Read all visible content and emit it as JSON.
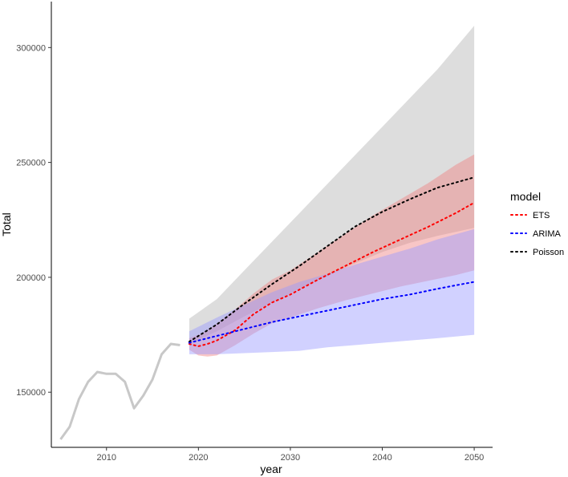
{
  "chart_data": {
    "type": "line",
    "xlabel": "year",
    "ylabel": "Total",
    "xlim": [
      2004,
      2052
    ],
    "ylim": [
      126000,
      320000
    ],
    "x_ticks": [
      2010,
      2020,
      2030,
      2040,
      2050
    ],
    "y_ticks": [
      150000,
      200000,
      250000,
      300000
    ],
    "y_tick_labels": [
      "150000",
      "200000",
      "250000",
      "300000"
    ],
    "grid": false,
    "legend": {
      "title": "model",
      "position": "right",
      "entries": [
        {
          "label": "ETS",
          "color": "#ff0000"
        },
        {
          "label": "ARIMA",
          "color": "#0000ff"
        },
        {
          "label": "Poisson",
          "color": "#000000"
        }
      ]
    },
    "observed": {
      "color": "#c8c8c8",
      "x": [
        2005,
        2006,
        2007,
        2008,
        2009,
        2010,
        2011,
        2012,
        2013,
        2014,
        2015,
        2016,
        2017,
        2018
      ],
      "y": [
        129500,
        135000,
        147000,
        154500,
        158800,
        158000,
        158000,
        154500,
        143000,
        148500,
        155500,
        166500,
        171000,
        170500
      ]
    },
    "series": [
      {
        "name": "Poisson",
        "color": "#000000",
        "band_color": "#b3b3b3",
        "x": [
          2019,
          2022,
          2025,
          2028,
          2031,
          2034,
          2037,
          2040,
          2043,
          2046,
          2050
        ],
        "mean": [
          172000,
          179500,
          188500,
          197000,
          205000,
          213500,
          222000,
          228500,
          234000,
          239000,
          243500
        ],
        "lower": [
          171000,
          176500,
          183000,
          189000,
          195000,
          200500,
          206000,
          211000,
          215000,
          218000,
          221500
        ],
        "upper": [
          182000,
          190500,
          203000,
          215500,
          228000,
          240500,
          253000,
          265500,
          278000,
          290500,
          309500
        ]
      },
      {
        "name": "ETS",
        "color": "#ff0000",
        "band_color": "#f08080",
        "x": [
          2019,
          2020,
          2021,
          2022,
          2024,
          2026,
          2028,
          2030,
          2033,
          2036,
          2039,
          2042,
          2045,
          2048,
          2050
        ],
        "mean": [
          171000,
          170000,
          171000,
          172500,
          177000,
          184000,
          189000,
          192500,
          199000,
          205000,
          211000,
          216500,
          222000,
          228000,
          232500
        ],
        "lower": [
          168500,
          166000,
          165500,
          166000,
          170500,
          175500,
          180000,
          182500,
          186500,
          190000,
          193000,
          196000,
          198500,
          201000,
          203000
        ],
        "upper": [
          173500,
          175000,
          177000,
          180000,
          186000,
          193000,
          199000,
          203000,
          211000,
          219000,
          227000,
          234000,
          241000,
          249000,
          253500
        ]
      },
      {
        "name": "ARIMA",
        "color": "#0000ff",
        "band_color": "#9999ff",
        "x": [
          2019,
          2022,
          2025,
          2028,
          2031,
          2034,
          2037,
          2040,
          2043,
          2046,
          2050
        ],
        "mean": [
          171500,
          174500,
          177500,
          180500,
          183000,
          185500,
          188000,
          190500,
          192500,
          195000,
          198000
        ],
        "lower": [
          166500,
          166500,
          167000,
          167500,
          168000,
          169500,
          170500,
          171500,
          172500,
          173500,
          175000
        ],
        "upper": [
          176500,
          182500,
          188000,
          193500,
          198000,
          201500,
          205500,
          209000,
          212500,
          216500,
          221000
        ]
      }
    ]
  }
}
